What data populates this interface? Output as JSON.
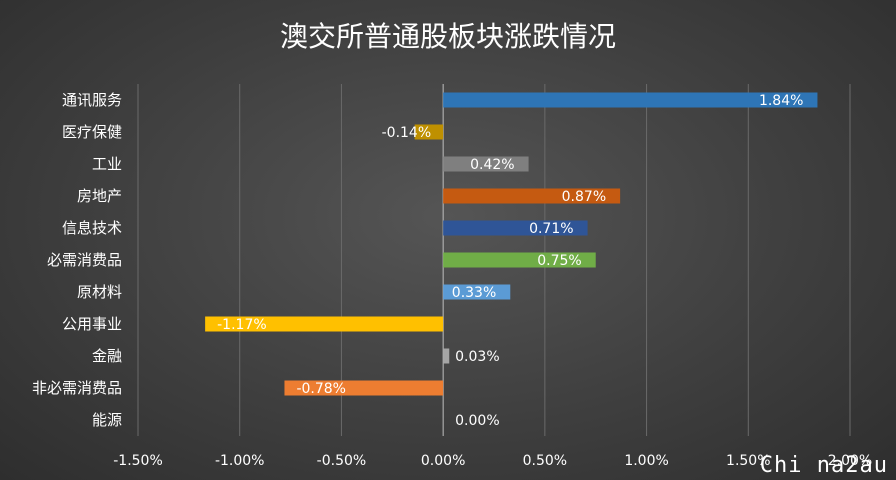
{
  "watermark": "Chi na2au",
  "chart_data": {
    "type": "bar",
    "orientation": "horizontal",
    "title": "澳交所普通股板块涨跌情况",
    "categories": [
      "通讯服务",
      "医疗保健",
      "工业",
      "房地产",
      "信息技术",
      "必需消费品",
      "原材料",
      "公用事业",
      "金融",
      "非必需消费品",
      "能源"
    ],
    "values": [
      1.84,
      -0.14,
      0.42,
      0.87,
      0.71,
      0.75,
      0.33,
      -1.17,
      0.03,
      -0.78,
      0.0
    ],
    "value_labels": [
      "1.84%",
      "-0.14%",
      "0.42%",
      "0.87%",
      "0.71%",
      "0.75%",
      "0.33%",
      "-1.17%",
      "0.03%",
      "-0.78%",
      "0.00%"
    ],
    "colors": [
      "#2e75b6",
      "#bf9000",
      "#7f7f7f",
      "#c55a11",
      "#2f5597",
      "#70ad47",
      "#5b9bd5",
      "#ffc000",
      "#a5a5a5",
      "#ed7d31",
      "#264478"
    ],
    "xlim": [
      -1.5,
      2.0
    ],
    "xticks": [
      -1.5,
      -1.0,
      -0.5,
      0.0,
      0.5,
      1.0,
      1.5,
      2.0
    ],
    "xtick_labels": [
      "-1.50%",
      "-1.00%",
      "-0.50%",
      "0.00%",
      "0.50%",
      "1.00%",
      "1.50%",
      "2.00%"
    ],
    "grid": true,
    "legend": "none"
  }
}
